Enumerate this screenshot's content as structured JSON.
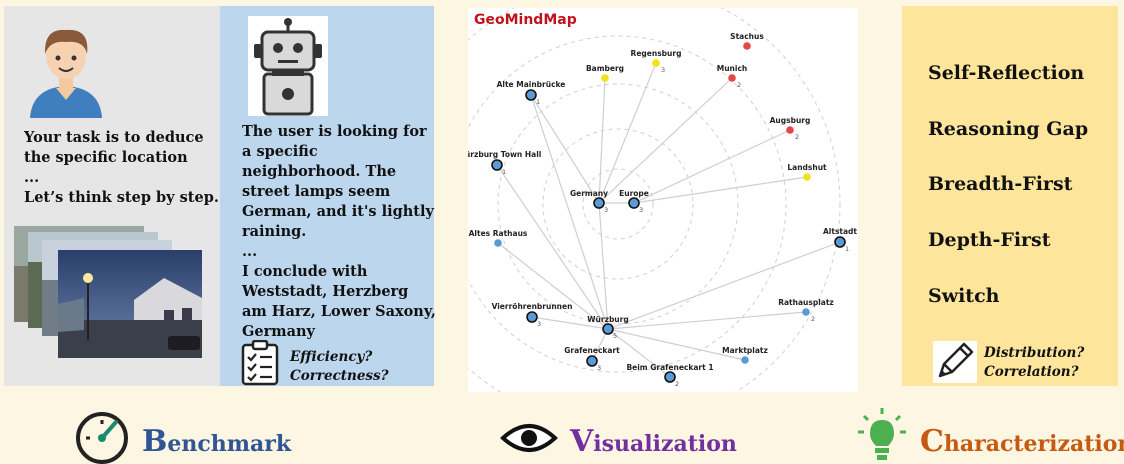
{
  "benchmark_panel": {
    "user_lines": [
      "Your task is to deduce",
      "the specific location",
      "...",
      "Let’s think step by step."
    ],
    "icon": "user-avatar-icon",
    "photos_icon": "street-photo-stack"
  },
  "model_panel": {
    "icon": "robot-icon",
    "response_lines": [
      "The user is looking for",
      "a specific",
      "neighborhood. The",
      "street lamps seem",
      "German, and it's lightly",
      "raining.",
      "...",
      "I conclude with",
      "Weststadt, Herzberg",
      "am Harz, Lower Saxony,",
      "Germany"
    ],
    "questions": [
      "Efficiency?",
      "Correctness?"
    ],
    "questions_icon": "checklist-icon"
  },
  "map": {
    "title": "GeoMindMap",
    "colors": {
      "blue": "#5b9bd5",
      "yellow": "#f2e01a",
      "red": "#e84545",
      "edge": "#cfcfcf",
      "ring": "#d0d0d0"
    },
    "nodes": [
      {
        "label": "Stachus",
        "count": "",
        "color": "red"
      },
      {
        "label": "Regensburg",
        "count": "3",
        "color": "yellow"
      },
      {
        "label": "Bamberg",
        "count": "",
        "color": "yellow"
      },
      {
        "label": "Munich",
        "count": "2",
        "color": "red"
      },
      {
        "label": "Alte Mainbrücke",
        "count": "1",
        "color": "blue"
      },
      {
        "label": "Augsburg",
        "count": "2",
        "color": "red"
      },
      {
        "label": "Würzburg Town Hall",
        "count": "1",
        "color": "blue"
      },
      {
        "label": "Landshut",
        "count": "",
        "color": "yellow"
      },
      {
        "label": "Germany",
        "count": "3",
        "color": "blue"
      },
      {
        "label": "Europe",
        "count": "3",
        "color": "blue"
      },
      {
        "label": "Altes Rathaus",
        "count": "",
        "color": "blue"
      },
      {
        "label": "Altstadt",
        "count": "1",
        "color": "blue"
      },
      {
        "label": "Vierröhrenbrunnen",
        "count": "3",
        "color": "blue"
      },
      {
        "label": "Rathausplatz",
        "count": "2",
        "color": "blue"
      },
      {
        "label": "Würzburg",
        "count": "5",
        "color": "blue"
      },
      {
        "label": "Grafeneckart",
        "count": "3",
        "color": "blue"
      },
      {
        "label": "Marktplatz",
        "count": "",
        "color": "blue"
      },
      {
        "label": "Beim Grafeneckart 1",
        "count": "2",
        "color": "blue"
      }
    ]
  },
  "characterization": {
    "items": [
      "Self-Reflection",
      "Reasoning Gap",
      "Breadth-First",
      "Depth-First",
      "Switch"
    ],
    "questions": [
      "Distribution?",
      "Correlation?"
    ],
    "questions_icon": "pencil-icon"
  },
  "bottom": {
    "benchmark": {
      "initial": "B",
      "rest": "enchmark",
      "icon": "gauge-icon",
      "color": "#2f5597"
    },
    "visualization": {
      "initial": "V",
      "rest": "isualization",
      "icon": "eye-icon",
      "color": "#7030a0"
    },
    "characterization": {
      "initial": "C",
      "rest": "haracterization",
      "icon": "lightbulb-icon",
      "color": "#c55a11"
    }
  }
}
